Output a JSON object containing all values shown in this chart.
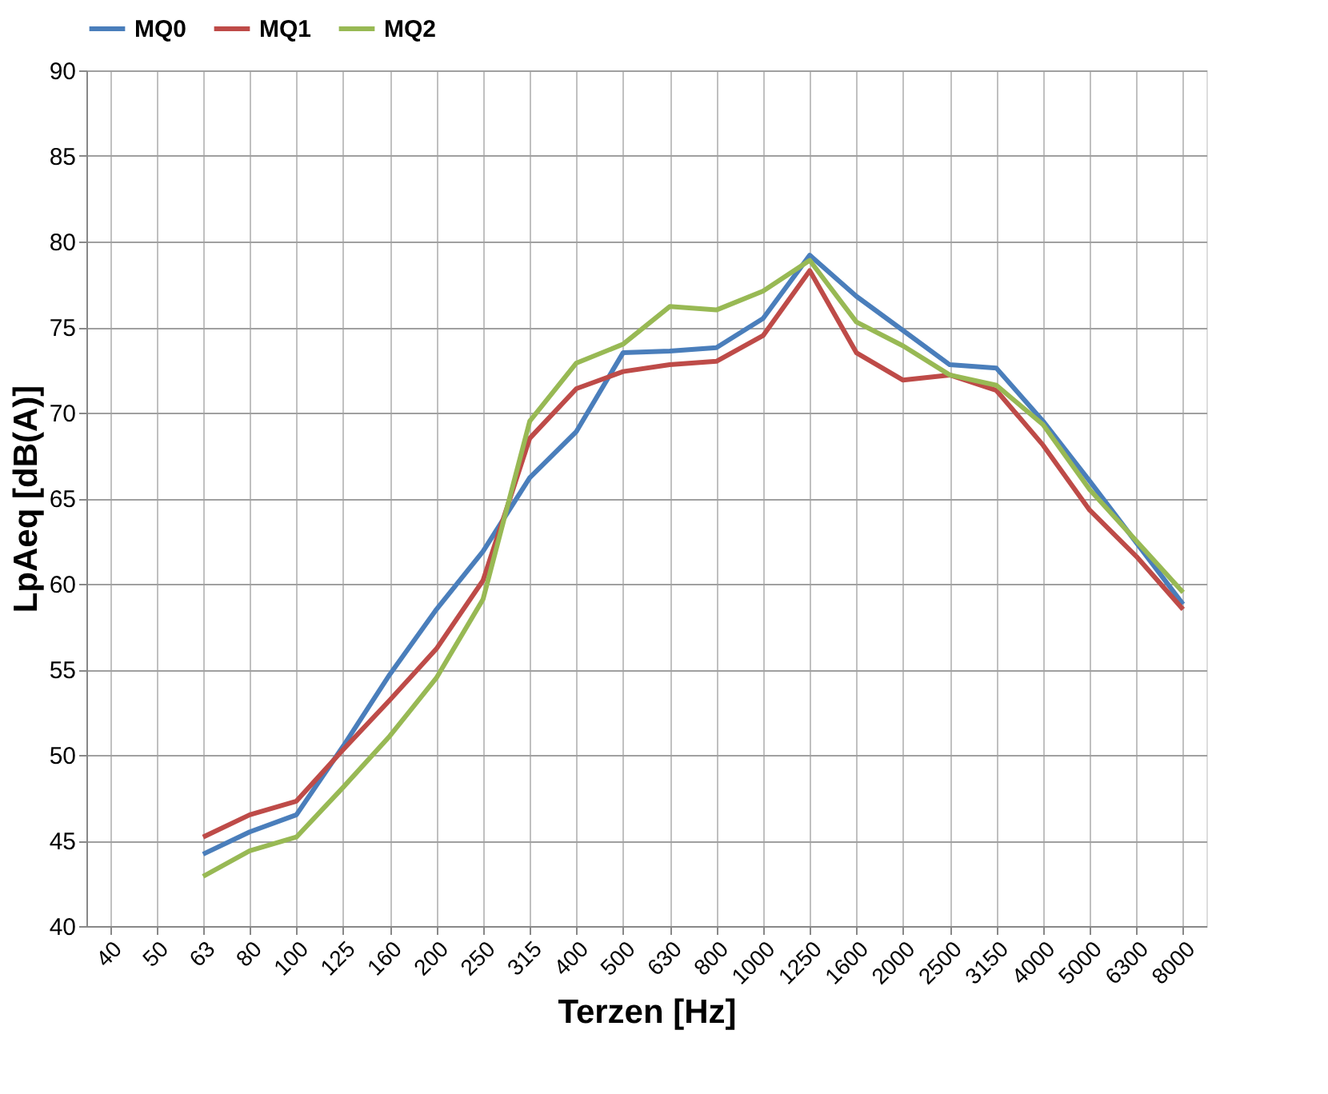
{
  "chart_data": {
    "type": "line",
    "xlabel": "Terzen [Hz]",
    "ylabel": "LpAeq [dB(A)]",
    "categories": [
      "40",
      "50",
      "63",
      "80",
      "100",
      "125",
      "160",
      "200",
      "250",
      "315",
      "400",
      "500",
      "630",
      "800",
      "1000",
      "1250",
      "1600",
      "2000",
      "2500",
      "3150",
      "4000",
      "5000",
      "6300",
      "8000"
    ],
    "series": [
      {
        "name": "MQ0",
        "color": "#4a7ebb",
        "values": [
          null,
          null,
          44.2,
          45.5,
          46.5,
          50.5,
          54.7,
          58.5,
          61.9,
          66.2,
          68.9,
          73.5,
          73.6,
          73.8,
          75.5,
          79.2,
          76.8,
          74.8,
          72.8,
          72.6,
          69.5,
          66.0,
          62.4,
          58.8
        ]
      },
      {
        "name": "MQ1",
        "color": "#be4b48",
        "values": [
          null,
          null,
          45.2,
          46.5,
          47.3,
          50.3,
          53.2,
          56.2,
          60.2,
          68.5,
          71.4,
          72.4,
          72.8,
          73.0,
          74.5,
          78.3,
          73.5,
          71.9,
          72.2,
          71.3,
          68.1,
          64.3,
          61.6,
          58.5
        ]
      },
      {
        "name": "MQ2",
        "color": "#98b954",
        "values": [
          null,
          null,
          42.9,
          44.4,
          45.2,
          48.1,
          51.1,
          54.5,
          59.1,
          69.5,
          72.9,
          74.0,
          76.2,
          76.0,
          77.1,
          78.9,
          75.3,
          73.9,
          72.2,
          71.6,
          69.3,
          65.5,
          62.5,
          59.5
        ]
      }
    ],
    "ylim": [
      40,
      90
    ],
    "yticks": [
      40,
      45,
      50,
      55,
      60,
      65,
      70,
      75,
      80,
      85,
      90
    ],
    "grid": true,
    "legend": "top",
    "marker": "none",
    "line_style": "solid"
  }
}
